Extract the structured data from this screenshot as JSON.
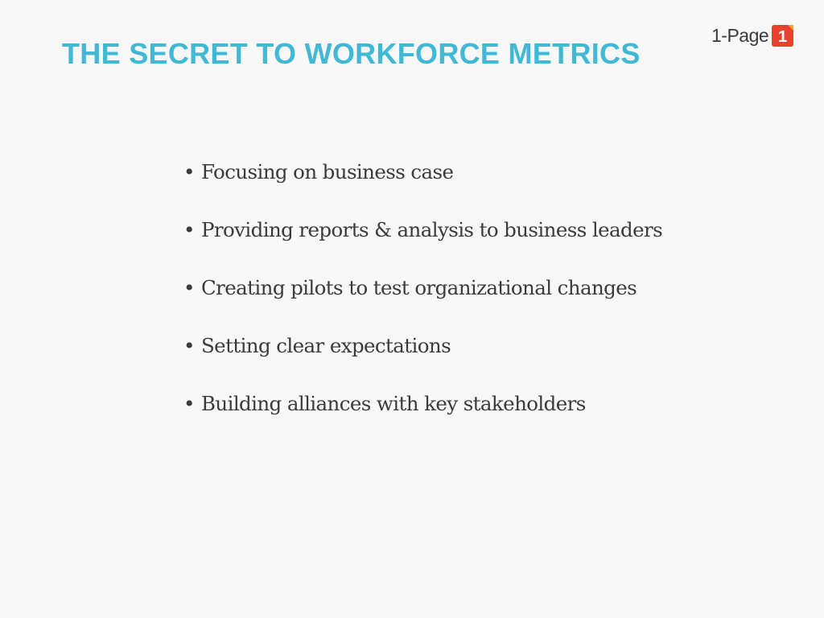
{
  "slide": {
    "title": "THE SECRET TO WORKFORCE METRICS",
    "logo": {
      "text": "1-Page",
      "badge_icon": "red-square-one-icon",
      "badge_text": "1",
      "colors": {
        "badge_red": "#e8412f",
        "badge_orange": "#f5a623"
      }
    },
    "bullet_marker": "•",
    "bullets": [
      "Focusing on business case",
      "Providing reports & analysis to business leaders",
      "Creating pilots to test organizational changes",
      "Setting clear expectations",
      "Building alliances with key stakeholders"
    ],
    "colors": {
      "title": "#40b8d6",
      "text": "#3a3a3a",
      "background": "#f8f8f8"
    }
  }
}
